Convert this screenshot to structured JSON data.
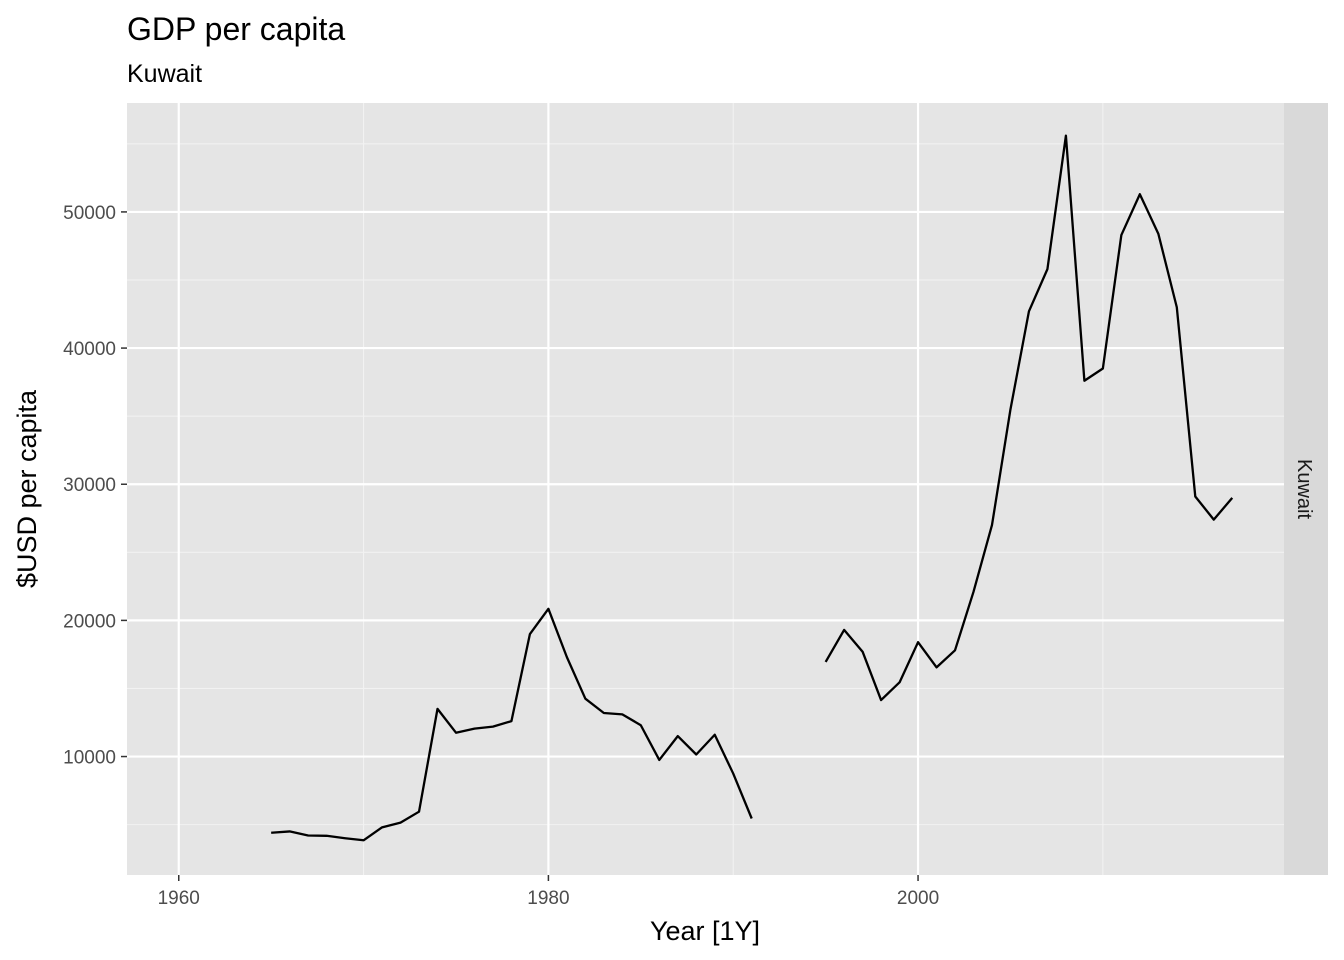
{
  "chart_data": {
    "type": "line",
    "title": "GDP per capita",
    "subtitle": "Kuwait",
    "xlabel": "Year [1Y]",
    "ylabel": "$USD per capita",
    "facet_label": "Kuwait",
    "xlim": [
      1957.2,
      2019.8
    ],
    "ylim": [
      1300,
      58000
    ],
    "x_ticks": [
      1960,
      1980,
      2000
    ],
    "x_minor_ticks": [
      1970,
      1990,
      2010
    ],
    "y_ticks": [
      10000,
      20000,
      30000,
      40000,
      50000
    ],
    "y_minor_ticks": [
      5000,
      15000,
      25000,
      35000,
      45000,
      55000
    ],
    "grid": true,
    "legend": "none",
    "line_color": "#000000",
    "panel_color": "#e5e5e5",
    "strip_color": "#d9d9d9",
    "series": [
      {
        "segments": [
          [
            [
              1965,
              4400
            ],
            [
              1966,
              4500
            ],
            [
              1967,
              4200
            ],
            [
              1968,
              4180
            ],
            [
              1969,
              4000
            ],
            [
              1970,
              3850
            ],
            [
              1971,
              4800
            ],
            [
              1972,
              5150
            ],
            [
              1973,
              5950
            ],
            [
              1974,
              13500
            ],
            [
              1975,
              11750
            ],
            [
              1976,
              12050
            ],
            [
              1977,
              12200
            ],
            [
              1978,
              12600
            ],
            [
              1979,
              19000
            ],
            [
              1980,
              20850
            ],
            [
              1981,
              17300
            ],
            [
              1982,
              14250
            ],
            [
              1983,
              13200
            ],
            [
              1984,
              13100
            ],
            [
              1985,
              12300
            ],
            [
              1986,
              9750
            ],
            [
              1987,
              11500
            ],
            [
              1988,
              10150
            ],
            [
              1989,
              11600
            ],
            [
              1990,
              8750
            ],
            [
              1991,
              5450
            ]
          ],
          [
            [
              1995,
              16950
            ],
            [
              1996,
              19300
            ],
            [
              1997,
              17700
            ],
            [
              1998,
              14150
            ],
            [
              1999,
              15450
            ],
            [
              2000,
              18400
            ],
            [
              2001,
              16550
            ],
            [
              2002,
              17800
            ],
            [
              2003,
              22100
            ],
            [
              2004,
              27000
            ],
            [
              2005,
              35500
            ],
            [
              2006,
              42700
            ],
            [
              2007,
              45800
            ],
            [
              2008,
              55600
            ],
            [
              2009,
              37600
            ],
            [
              2010,
              38500
            ],
            [
              2011,
              48300
            ],
            [
              2012,
              51300
            ],
            [
              2013,
              48400
            ],
            [
              2014,
              43000
            ],
            [
              2015,
              29100
            ],
            [
              2016,
              27400
            ],
            [
              2017,
              29000
            ]
          ]
        ]
      }
    ]
  }
}
